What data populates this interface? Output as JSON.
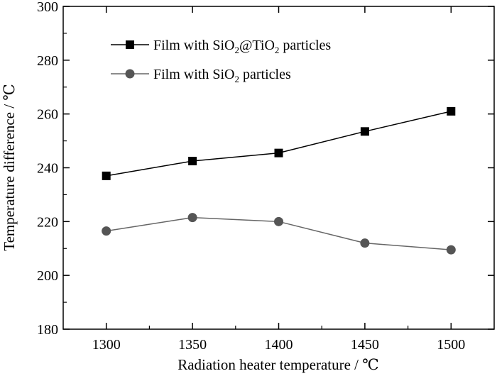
{
  "chart_data": {
    "type": "line",
    "title": "",
    "xlabel": "Radiation heater temperature / ℃",
    "ylabel": "Temperature difference / ℃",
    "x": [
      1300,
      1350,
      1400,
      1450,
      1500
    ],
    "xlim": [
      1275,
      1525
    ],
    "ylim": [
      180,
      300
    ],
    "xticks": [
      "1300",
      "1350",
      "1400",
      "1450",
      "1500"
    ],
    "yticks": [
      "180",
      "200",
      "220",
      "240",
      "260",
      "280",
      "300"
    ],
    "grid": false,
    "legend_position": "top-left",
    "series": [
      {
        "name": "Film with SiO2@TiO2 particles",
        "legend_parts": [
          "Film with SiO",
          "2",
          "@TiO",
          "2",
          " particles"
        ],
        "marker": "square",
        "color": "#000000",
        "values": [
          237,
          242.5,
          245.5,
          253.5,
          261
        ]
      },
      {
        "name": "Film with SiO2 particles",
        "legend_parts": [
          "Film with SiO",
          "2",
          " particles"
        ],
        "marker": "circle",
        "color": "#555555",
        "line_color": "#666666",
        "values": [
          216.5,
          221.5,
          220,
          212,
          209.5
        ]
      }
    ]
  }
}
